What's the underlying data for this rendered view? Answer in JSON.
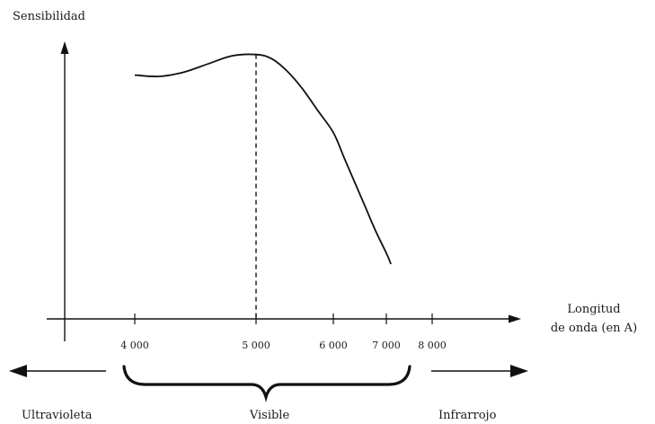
{
  "chart_data": {
    "type": "line",
    "title": "",
    "ylabel": "Sensibilidad",
    "xlabel": [
      "Longitud",
      "de onda (en A)"
    ],
    "x_ticks": [
      {
        "value": 4000,
        "label": "4 000"
      },
      {
        "value": 5000,
        "label": "5 000"
      },
      {
        "value": 6000,
        "label": "6 000"
      },
      {
        "value": 7000,
        "label": "7 000"
      },
      {
        "value": 8000,
        "label": "8 000"
      }
    ],
    "series": [
      {
        "x": [
          4000,
          4200,
          4400,
          4600,
          4800,
          5000,
          5200,
          5400,
          5600,
          5800,
          6000,
          6200,
          6400,
          6600,
          6800,
          7000,
          7100
        ],
        "y": [
          0.89,
          0.885,
          0.9,
          0.93,
          0.96,
          0.965,
          0.95,
          0.905,
          0.84,
          0.76,
          0.68,
          0.59,
          0.5,
          0.41,
          0.32,
          0.24,
          0.2
        ]
      }
    ],
    "peak_marker": {
      "x": 5000,
      "style": "dashed"
    },
    "ylim": [
      0,
      1
    ],
    "grid": false,
    "regions": [
      {
        "label": "Ultravioleta",
        "direction": "left"
      },
      {
        "label": "Visible",
        "span": [
          4000,
          7500
        ]
      },
      {
        "label": "Infrarrojo",
        "direction": "right"
      }
    ]
  }
}
